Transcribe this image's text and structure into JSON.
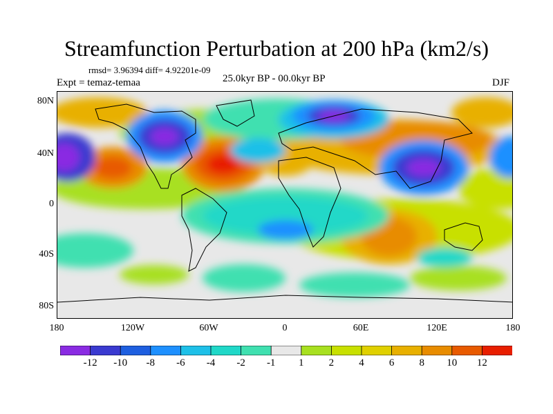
{
  "title": "Streamfunction Perturbation at 200 hPa (km2/s)",
  "stats": "rmsd= 3.96394 diff= 4.92201e-09",
  "expt": "Expt = temaz-temaa",
  "period": "25.0kyr BP - 00.0kyr BP",
  "season": "DJF",
  "lat_labels": [
    "80N",
    "40N",
    "0",
    "40S",
    "80S"
  ],
  "lon_labels": [
    "180",
    "120W",
    "60W",
    "0",
    "60E",
    "120E",
    "180"
  ],
  "colorbar": {
    "colors": [
      "#8a2be2",
      "#3a3ad0",
      "#1e5fe0",
      "#1e90ff",
      "#1ec0e8",
      "#20d8c8",
      "#40e0b0",
      "#e8e8e8",
      "#a8e020",
      "#c8e000",
      "#e0d000",
      "#e8b000",
      "#e88c00",
      "#e85a00",
      "#e81e00"
    ],
    "labels": [
      "-12",
      "-10",
      "-8",
      "-6",
      "-4",
      "-2",
      "-1",
      "1",
      "2",
      "4",
      "6",
      "8",
      "10",
      "12"
    ]
  }
}
